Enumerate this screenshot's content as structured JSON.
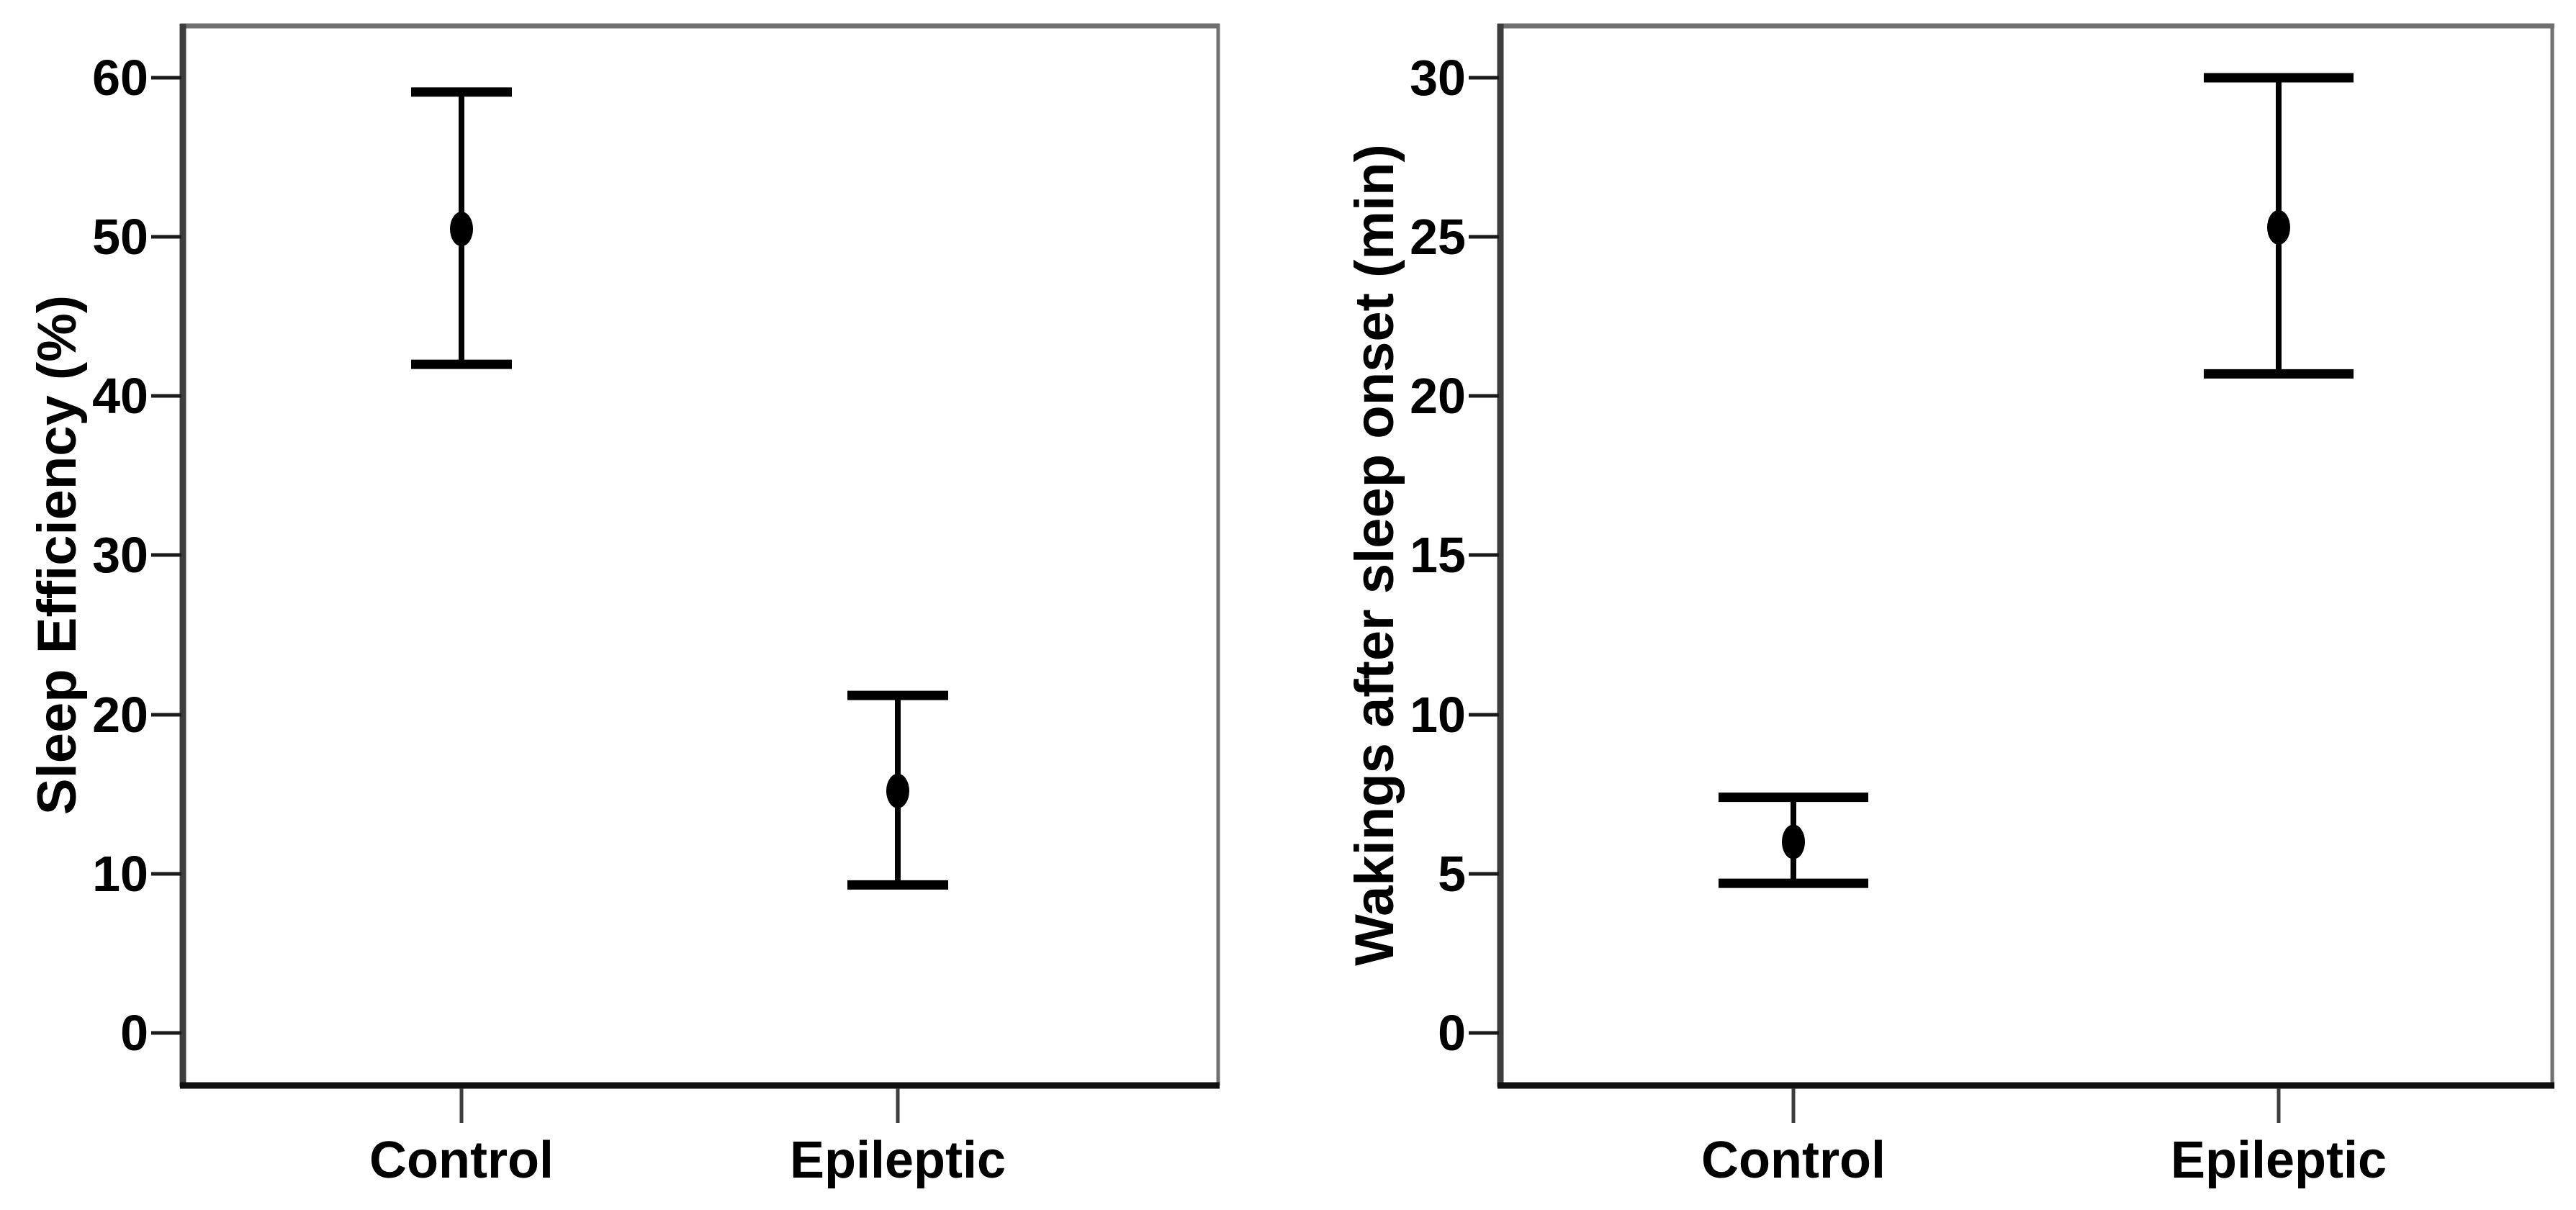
{
  "figure": {
    "background": "#ffffff",
    "description": "Two error-bar charts comparing Control and Epileptic groups"
  },
  "colors": {
    "ink": "#000000",
    "axis_dark": "#3d3d3d",
    "frame_gray": "#707070",
    "background": "#ffffff"
  },
  "chart_data": [
    {
      "type": "errorbar",
      "title": "",
      "xlabel": "",
      "ylabel": "Sleep Efficiency (%)",
      "categories": [
        "Control",
        "Epileptic"
      ],
      "points": [
        {
          "category": "Control",
          "mean": 50.5,
          "ci_low": 42.0,
          "ci_high": 59.1
        },
        {
          "category": "Epileptic",
          "mean": 15.2,
          "ci_low": 9.3,
          "ci_high": 21.2
        }
      ],
      "yticks": [
        0,
        10,
        20,
        30,
        40,
        50,
        60
      ],
      "ylim": [
        -3.3,
        63.3
      ],
      "grid": false,
      "legend": "none",
      "marker": "filled-ellipse"
    },
    {
      "type": "errorbar",
      "title": "",
      "xlabel": "",
      "ylabel": "Wakings after sleep onset (min)",
      "categories": [
        "Control",
        "Epileptic"
      ],
      "points": [
        {
          "category": "Control",
          "mean": 6.0,
          "ci_low": 4.7,
          "ci_high": 7.4
        },
        {
          "category": "Epileptic",
          "mean": 25.3,
          "ci_low": 20.7,
          "ci_high": 30.0
        }
      ],
      "yticks": [
        0,
        5,
        10,
        15,
        20,
        25,
        30
      ],
      "ylim": [
        -1.65,
        31.65
      ],
      "grid": false,
      "legend": "none",
      "marker": "filled-ellipse"
    }
  ]
}
